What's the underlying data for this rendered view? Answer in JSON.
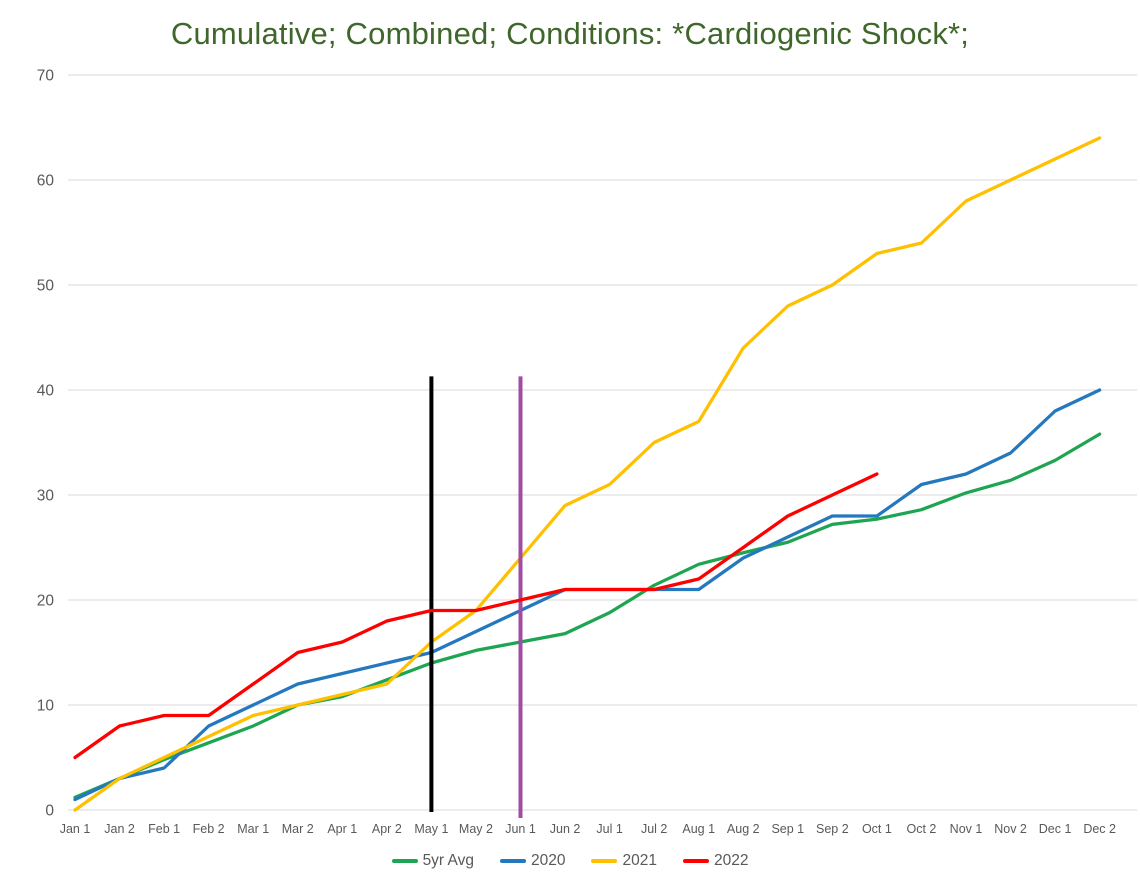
{
  "title": "Cumulative; Combined; Conditions: *Cardiogenic Shock*;",
  "title_color": "#3F672B",
  "axis_text_color": "#595959",
  "gridline_color": "#D9D9D9",
  "chart_data": {
    "type": "line",
    "title": "Cumulative; Combined; Conditions: *Cardiogenic Shock*;",
    "xlabel": "",
    "ylabel": "",
    "ylim": [
      0,
      70
    ],
    "y_ticks": [
      0,
      10,
      20,
      30,
      40,
      50,
      60,
      70
    ],
    "grid": true,
    "legend_position": "bottom",
    "categories": [
      "Jan 1",
      "Jan 2",
      "Feb 1",
      "Feb 2",
      "Mar 1",
      "Mar 2",
      "Apr 1",
      "Apr 2",
      "May 1",
      "May 2",
      "Jun 1",
      "Jun 2",
      "Jul 1",
      "Jul 2",
      "Aug 1",
      "Aug 2",
      "Sep 1",
      "Sep 2",
      "Oct 1",
      "Oct 2",
      "Nov 1",
      "Nov 2",
      "Dec 1",
      "Dec 2"
    ],
    "series": [
      {
        "name": "5yr Avg",
        "color": "#1EA552",
        "values": [
          1.2,
          3,
          4.8,
          6.4,
          8,
          10,
          10.8,
          12.4,
          14,
          15.2,
          16,
          16.8,
          18.8,
          21.4,
          23.4,
          24.5,
          25.5,
          27.2,
          27.7,
          28.6,
          30.2,
          31.4,
          33.3,
          35.8
        ]
      },
      {
        "name": "2020",
        "color": "#2478BE",
        "values": [
          1,
          3,
          4,
          8,
          10,
          12,
          13,
          14,
          15,
          17,
          19,
          21,
          21,
          21,
          21,
          24,
          26,
          28,
          28,
          31,
          32,
          34,
          38,
          40
        ]
      },
      {
        "name": "2021",
        "color": "#FFC000",
        "values": [
          0,
          3,
          5,
          7,
          9,
          10,
          11,
          12,
          16,
          19,
          24,
          29,
          31,
          35,
          37,
          44,
          48,
          50,
          53,
          54,
          58,
          60,
          62,
          64
        ]
      },
      {
        "name": "2022",
        "color": "#FE0000",
        "values": [
          5,
          8,
          9,
          9,
          12,
          15,
          16,
          18,
          19,
          19,
          20,
          21,
          21,
          21,
          22,
          25,
          28,
          30,
          32
        ]
      }
    ],
    "vlines": [
      {
        "x_category": "May 1",
        "color": "#000000",
        "top_value": 41.3
      },
      {
        "x_category": "Jun 1",
        "color": "#A14CA0",
        "top_value": 41.3
      }
    ]
  }
}
